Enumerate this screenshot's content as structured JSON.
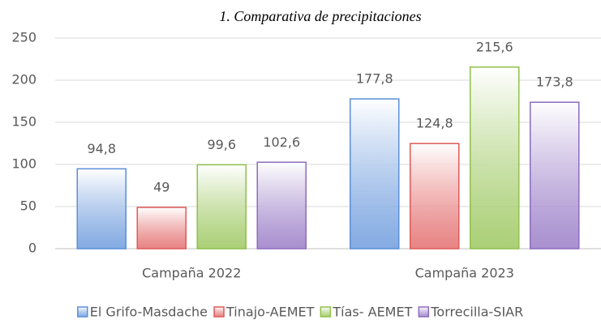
{
  "chart_data": {
    "type": "bar",
    "title": "1. Comparativa de precipitaciones",
    "categories": [
      "Campaña 2022",
      "Campaña 2023"
    ],
    "series": [
      {
        "name": "El Grifo-Masdache",
        "color": "#5b8fd9",
        "values": [
          94.8,
          177.8
        ],
        "value_labels": [
          "94,8",
          "177,8"
        ]
      },
      {
        "name": "Tinajo-AEMET",
        "color": "#e05a5a",
        "values": [
          49,
          124.8
        ],
        "value_labels": [
          "49",
          "124,8"
        ]
      },
      {
        "name": "Tías- AEMET",
        "color": "#8fc04a",
        "values": [
          99.6,
          215.6
        ],
        "value_labels": [
          "99,6",
          "215,6"
        ]
      },
      {
        "name": "Torrecilla-SIAR",
        "color": "#8c6bbf",
        "values": [
          102.6,
          173.8
        ],
        "value_labels": [
          "102,6",
          "173,8"
        ]
      }
    ],
    "ylim": [
      0,
      250
    ],
    "yticks": [
      0,
      50,
      100,
      150,
      200,
      250
    ],
    "grid": true,
    "legend": "bottom"
  }
}
